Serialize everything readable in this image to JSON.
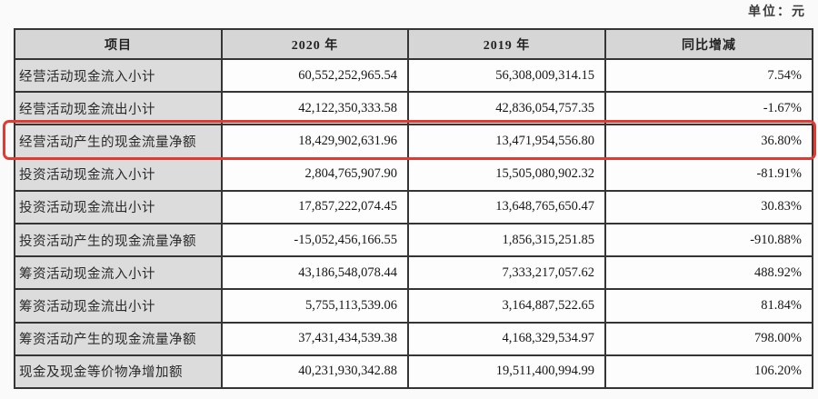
{
  "unit_label": "单位：元",
  "colors": {
    "highlight_border": "#e23a31",
    "table_border": "#353535",
    "header_bg": "#d6d6d6",
    "label_column_bg": "#dcdcdc"
  },
  "table": {
    "columns": [
      "项目",
      "2020 年",
      "2019 年",
      "同比增减"
    ],
    "rows": [
      {
        "item": "经营活动现金流入小计",
        "y2020": "60,552,252,965.54",
        "y2019": "56,308,009,314.15",
        "yoy": "7.54%",
        "highlighted": false
      },
      {
        "item": "经营活动现金流出小计",
        "y2020": "42,122,350,333.58",
        "y2019": "42,836,054,757.35",
        "yoy": "-1.67%",
        "highlighted": false
      },
      {
        "item": "经营活动产生的现金流量净额",
        "y2020": "18,429,902,631.96",
        "y2019": "13,471,954,556.80",
        "yoy": "36.80%",
        "highlighted": true
      },
      {
        "item": "投资活动现金流入小计",
        "y2020": "2,804,765,907.90",
        "y2019": "15,505,080,902.32",
        "yoy": "-81.91%",
        "highlighted": false
      },
      {
        "item": "投资活动现金流出小计",
        "y2020": "17,857,222,074.45",
        "y2019": "13,648,765,650.47",
        "yoy": "30.83%",
        "highlighted": false
      },
      {
        "item": "投资活动产生的现金流量净额",
        "y2020": "-15,052,456,166.55",
        "y2019": "1,856,315,251.85",
        "yoy": "-910.88%",
        "highlighted": false
      },
      {
        "item": "筹资活动现金流入小计",
        "y2020": "43,186,548,078.44",
        "y2019": "7,333,217,057.62",
        "yoy": "488.92%",
        "highlighted": false
      },
      {
        "item": "筹资活动现金流出小计",
        "y2020": "5,755,113,539.06",
        "y2019": "3,164,887,522.65",
        "yoy": "81.84%",
        "highlighted": false
      },
      {
        "item": "筹资活动产生的现金流量净额",
        "y2020": "37,431,434,539.38",
        "y2019": "4,168,329,534.97",
        "yoy": "798.00%",
        "highlighted": false
      },
      {
        "item": "现金及现金等价物净增加额",
        "y2020": "40,231,930,342.88",
        "y2019": "19,511,400,994.99",
        "yoy": "106.20%",
        "highlighted": false
      }
    ]
  }
}
